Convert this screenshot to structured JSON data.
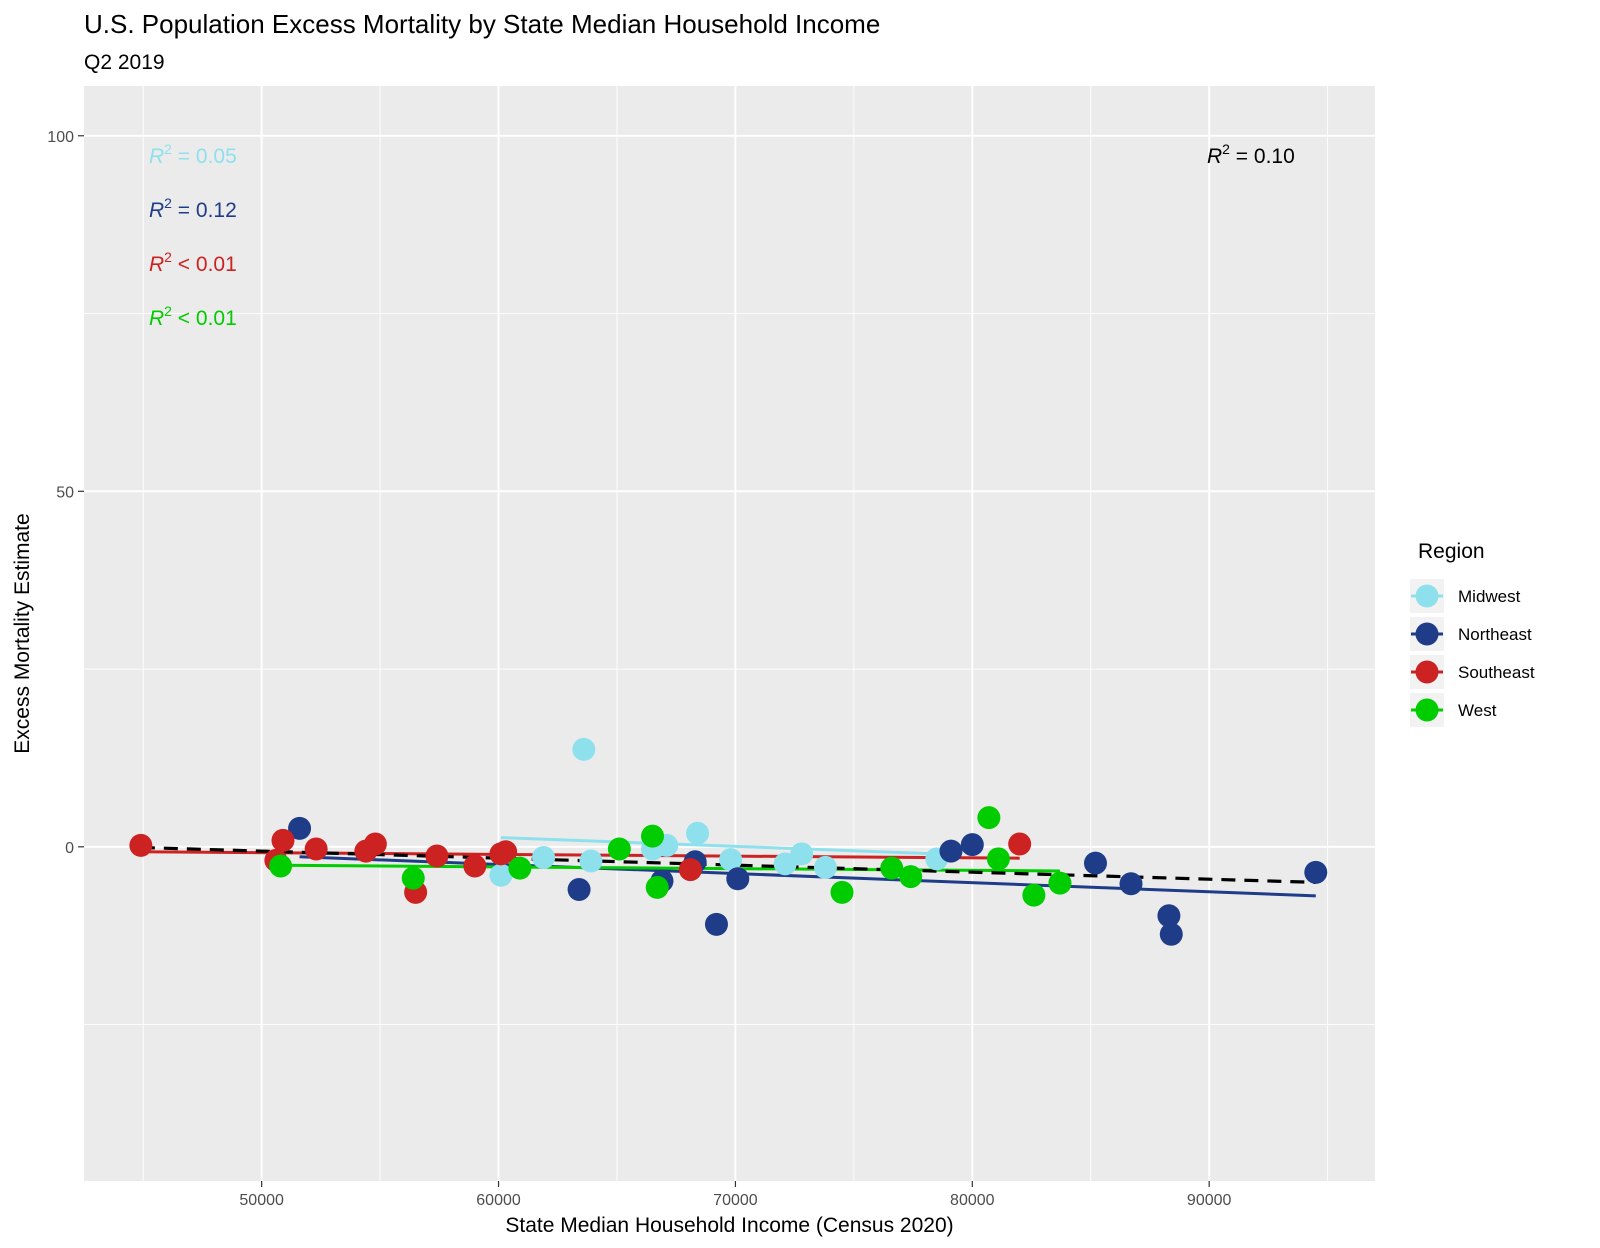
{
  "chart_data": {
    "type": "scatter",
    "title": "U.S. Population Excess Mortality by State Median Household Income",
    "subtitle": "Q2 2019",
    "xlabel": "State Median Household Income (Census 2020)",
    "ylabel": "Excess Mortality Estimate",
    "xlim": [
      42500,
      97000
    ],
    "ylim": [
      -47,
      107
    ],
    "x_ticks": [
      50000,
      60000,
      70000,
      80000,
      90000
    ],
    "y_ticks": [
      0,
      50,
      100
    ],
    "grid": true,
    "background": "#ebebeb",
    "legend": {
      "title": "Region",
      "placement": "right",
      "entries": [
        "Midwest",
        "Northeast",
        "Southeast",
        "West"
      ]
    },
    "series": [
      {
        "name": "Midwest",
        "color": "#8ee1ec",
        "points": [
          [
            60100,
            -4.0
          ],
          [
            61900,
            -1.5
          ],
          [
            63600,
            13.7
          ],
          [
            63900,
            -2.0
          ],
          [
            66500,
            -0.3
          ],
          [
            67100,
            0.2
          ],
          [
            68400,
            1.9
          ],
          [
            69800,
            -1.8
          ],
          [
            72100,
            -2.4
          ],
          [
            72800,
            -1.0
          ],
          [
            73800,
            -2.9
          ],
          [
            78500,
            -1.7
          ]
        ],
        "fit": {
          "x": [
            60100,
            78500
          ],
          "y": [
            1.3,
            -1.0
          ]
        },
        "r2_text": "= 0.05"
      },
      {
        "name": "Northeast",
        "color": "#1f3c88",
        "points": [
          [
            51600,
            2.6
          ],
          [
            63400,
            -6.0
          ],
          [
            66900,
            -4.8
          ],
          [
            68300,
            -2.1
          ],
          [
            69200,
            -10.9
          ],
          [
            70100,
            -4.5
          ],
          [
            79100,
            -0.6
          ],
          [
            80000,
            0.3
          ],
          [
            85200,
            -2.3
          ],
          [
            86700,
            -5.2
          ],
          [
            88300,
            -9.7
          ],
          [
            88400,
            -12.3
          ],
          [
            94500,
            -3.6
          ]
        ],
        "fit": {
          "x": [
            51600,
            94500
          ],
          "y": [
            -1.4,
            -6.9
          ]
        },
        "r2_text": "= 0.12"
      },
      {
        "name": "Southeast",
        "color": "#cc2222",
        "points": [
          [
            44900,
            0.2
          ],
          [
            50600,
            -1.9
          ],
          [
            50900,
            0.9
          ],
          [
            52300,
            -0.3
          ],
          [
            54400,
            -0.6
          ],
          [
            54800,
            0.4
          ],
          [
            56500,
            -6.4
          ],
          [
            57400,
            -1.3
          ],
          [
            59000,
            -2.7
          ],
          [
            60100,
            -1.0
          ],
          [
            60300,
            -0.7
          ],
          [
            68100,
            -3.2
          ],
          [
            82000,
            0.4
          ]
        ],
        "fit": {
          "x": [
            44900,
            82000
          ],
          "y": [
            -0.7,
            -1.6
          ]
        },
        "r2_text": "< 0.01"
      },
      {
        "name": "West",
        "color": "#00cc00",
        "points": [
          [
            50800,
            -2.7
          ],
          [
            56400,
            -4.4
          ],
          [
            60900,
            -3.0
          ],
          [
            65100,
            -0.3
          ],
          [
            66500,
            1.5
          ],
          [
            66700,
            -5.7
          ],
          [
            74500,
            -6.4
          ],
          [
            76600,
            -3.0
          ],
          [
            77400,
            -4.2
          ],
          [
            80700,
            4.1
          ],
          [
            81100,
            -1.7
          ],
          [
            82600,
            -6.8
          ],
          [
            83700,
            -5.1
          ]
        ],
        "fit": {
          "x": [
            50800,
            83700
          ],
          "y": [
            -2.6,
            -3.4
          ]
        },
        "r2_text": "< 0.01"
      }
    ],
    "overall_fit": {
      "x": [
        44900,
        94500
      ],
      "y": [
        -0.1,
        -5.0
      ],
      "style": "dashed",
      "color": "#000000",
      "r2_text": "= 0.10"
    },
    "r2_symbol": "R",
    "r2_superscript": "2"
  }
}
